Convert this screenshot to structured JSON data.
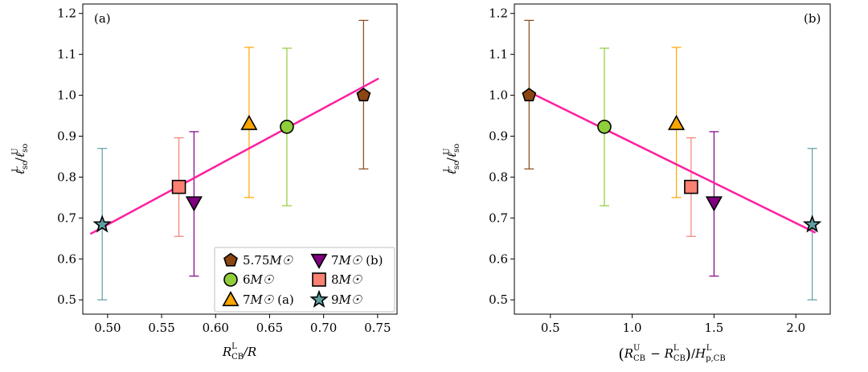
{
  "chart_data": [
    {
      "type": "scatter",
      "panel_label": "(a)",
      "xlabel_main": "R",
      "xlabel_sub": "CB",
      "xlabel_sup": "L",
      "xlabel_suffix": "/R",
      "ylabel": "ℓso(L) / ℓso(U)",
      "ylabel_parts": {
        "base": "ℓ",
        "sub": "so",
        "sup_lower": "L",
        "sup_upper": "U"
      },
      "xlim": [
        0.477,
        0.768
      ],
      "ylim": [
        0.465,
        1.223
      ],
      "xticks": [
        0.5,
        0.55,
        0.6,
        0.65,
        0.7,
        0.75
      ],
      "xtick_labels": [
        "0.50",
        "0.55",
        "0.60",
        "0.65",
        "0.70",
        "0.75"
      ],
      "yticks": [
        0.5,
        0.6,
        0.7,
        0.8,
        0.9,
        1.0,
        1.1,
        1.2
      ],
      "ytick_labels": [
        "0.5",
        "0.6",
        "0.7",
        "0.8",
        "0.9",
        "1.0",
        "1.1",
        "1.2"
      ],
      "fit_line": {
        "x": [
          0.484,
          0.751
        ],
        "y": [
          0.661,
          1.041
        ],
        "color": "#ff1fa0"
      },
      "points": [
        {
          "name": "5.75M☉",
          "x": 0.737,
          "y": 1.0,
          "ylow": 0.82,
          "yhigh": 1.183,
          "marker": "pentagon",
          "color": "#8b4513"
        },
        {
          "name": "6M☉",
          "x": 0.666,
          "y": 0.923,
          "ylow": 0.73,
          "yhigh": 1.115,
          "marker": "circle",
          "color": "#8fce3a"
        },
        {
          "name": "7M☉ (a)",
          "x": 0.631,
          "y": 0.931,
          "ylow": 0.75,
          "yhigh": 1.117,
          "marker": "triangle-up",
          "color": "#ffa500"
        },
        {
          "name": "7M☉ (b)",
          "x": 0.58,
          "y": 0.737,
          "ylow": 0.558,
          "yhigh": 0.911,
          "marker": "triangle-down",
          "color": "#800080"
        },
        {
          "name": "8M☉",
          "x": 0.566,
          "y": 0.776,
          "ylow": 0.655,
          "yhigh": 0.896,
          "marker": "square",
          "color": "#fa8072"
        },
        {
          "name": "9M☉",
          "x": 0.495,
          "y": 0.684,
          "ylow": 0.5,
          "yhigh": 0.87,
          "marker": "star",
          "color": "#5f9ea0"
        }
      ],
      "legend": {
        "placement": "lower-right",
        "entries": [
          {
            "label": "5.75",
            "unit": "M☉",
            "suffix": "",
            "marker": "pentagon",
            "color": "#8b4513"
          },
          {
            "label": "7",
            "unit": "M☉",
            "suffix": " (b)",
            "marker": "triangle-down",
            "color": "#800080"
          },
          {
            "label": "6",
            "unit": "M☉",
            "suffix": "",
            "marker": "circle",
            "color": "#8fce3a"
          },
          {
            "label": "8",
            "unit": "M☉",
            "suffix": "",
            "marker": "square",
            "color": "#fa8072"
          },
          {
            "label": "7",
            "unit": "M☉",
            "suffix": " (a)",
            "marker": "triangle-up",
            "color": "#ffa500"
          },
          {
            "label": "9",
            "unit": "M☉",
            "suffix": "",
            "marker": "star",
            "color": "#5f9ea0"
          }
        ]
      }
    },
    {
      "type": "scatter",
      "panel_label": "(b)",
      "xlabel": "(R_CB^U − R_CB^L)/H_p,CB^L",
      "xlabel_parts": {
        "r": "R",
        "sub": "CB",
        "sup_u": "U",
        "sup_l": "L",
        "minus": " − ",
        "h": "H",
        "h_sub": "p,CB",
        "slash": "/"
      },
      "ylabel": "ℓso(L) / ℓso(U)",
      "ylabel_parts": {
        "base": "ℓ",
        "sub": "so",
        "sup_lower": "L",
        "sup_upper": "U"
      },
      "xlim": [
        0.28,
        2.21
      ],
      "ylim": [
        0.465,
        1.223
      ],
      "xticks": [
        0.5,
        1.0,
        1.5,
        2.0
      ],
      "xtick_labels": [
        "0.5",
        "1.0",
        "1.5",
        "2.0"
      ],
      "yticks": [
        0.5,
        0.6,
        0.7,
        0.8,
        0.9,
        1.0,
        1.1,
        1.2
      ],
      "ytick_labels": [
        "0.5",
        "0.6",
        "0.7",
        "0.8",
        "0.9",
        "1.0",
        "1.1",
        "1.2"
      ],
      "fit_line": {
        "x": [
          0.37,
          2.12
        ],
        "y": [
          1.008,
          0.664
        ],
        "color": "#ff1fa0"
      },
      "points": [
        {
          "name": "5.75M☉",
          "x": 0.37,
          "y": 1.0,
          "ylow": 0.82,
          "yhigh": 1.183,
          "marker": "pentagon",
          "color": "#8b4513"
        },
        {
          "name": "6M☉",
          "x": 0.83,
          "y": 0.923,
          "ylow": 0.73,
          "yhigh": 1.115,
          "marker": "circle",
          "color": "#8fce3a"
        },
        {
          "name": "7M☉ (a)",
          "x": 1.27,
          "y": 0.931,
          "ylow": 0.75,
          "yhigh": 1.117,
          "marker": "triangle-up",
          "color": "#ffa500"
        },
        {
          "name": "8M☉",
          "x": 1.36,
          "y": 0.776,
          "ylow": 0.655,
          "yhigh": 0.896,
          "marker": "square",
          "color": "#fa8072"
        },
        {
          "name": "7M☉ (b)",
          "x": 1.5,
          "y": 0.737,
          "ylow": 0.558,
          "yhigh": 0.911,
          "marker": "triangle-down",
          "color": "#800080"
        },
        {
          "name": "9M☉",
          "x": 2.1,
          "y": 0.684,
          "ylow": 0.5,
          "yhigh": 0.87,
          "marker": "star",
          "color": "#5f9ea0"
        }
      ]
    }
  ]
}
